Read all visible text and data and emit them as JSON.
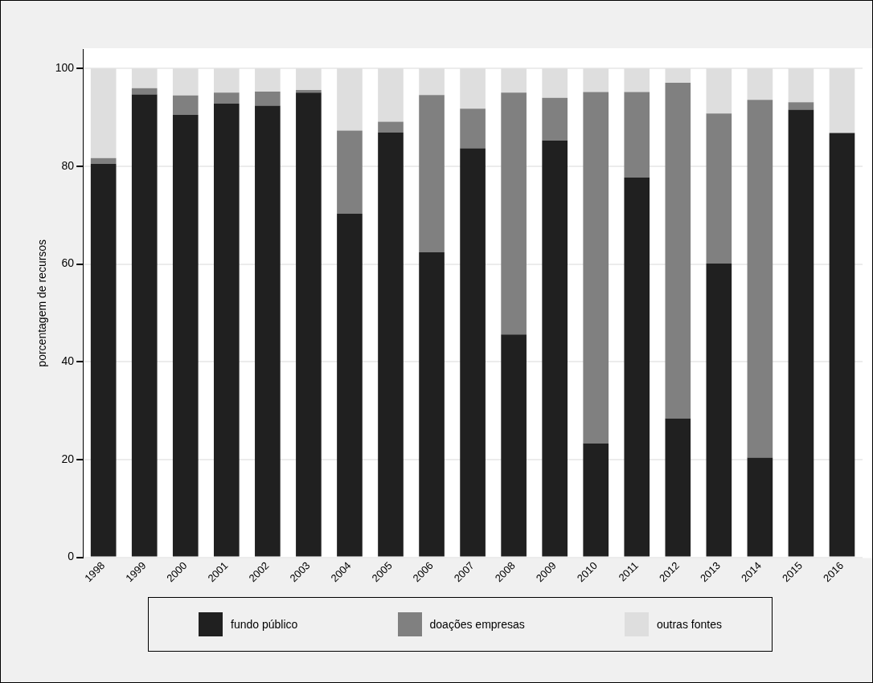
{
  "chart_data": {
    "type": "bar",
    "stacked": true,
    "ylabel": "porcentagem de recursos",
    "categories": [
      "1998",
      "1999",
      "2000",
      "2001",
      "2002",
      "2003",
      "2004",
      "2005",
      "2006",
      "2007",
      "2008",
      "2009",
      "2010",
      "2011",
      "2012",
      "2013",
      "2014",
      "2015",
      "2016"
    ],
    "series": [
      {
        "name": "fundo público",
        "color": "#202020",
        "values": [
          80.5,
          94.7,
          90.5,
          92.8,
          92.4,
          95.1,
          70.3,
          86.9,
          62.4,
          83.7,
          45.6,
          85.3,
          23.3,
          77.7,
          28.4,
          60.1,
          20.4,
          91.6,
          86.8
        ]
      },
      {
        "name": "doações empresas",
        "color": "#808080",
        "values": [
          1.2,
          1.3,
          4.0,
          2.3,
          2.9,
          0.5,
          17.0,
          2.2,
          32.2,
          8.1,
          49.5,
          8.7,
          71.9,
          17.5,
          68.7,
          30.7,
          73.2,
          1.5,
          0
        ]
      },
      {
        "name": "outras fontes",
        "color": "#dedede",
        "values": [
          18.3,
          4.0,
          5.5,
          4.9,
          4.7,
          4.4,
          12.7,
          10.9,
          5.4,
          8.2,
          4.9,
          6.0,
          4.8,
          4.8,
          2.9,
          9.2,
          6.4,
          6.9,
          13.2
        ]
      }
    ],
    "ylim": [
      0,
      104
    ],
    "yticks": [
      0,
      20,
      40,
      60,
      80,
      100
    ],
    "grid": "y",
    "legend": "bottom"
  }
}
